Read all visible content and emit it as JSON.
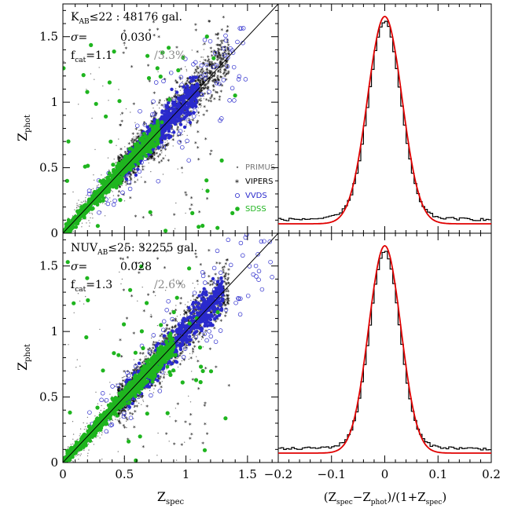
{
  "colors": {
    "primus": "#7a7a7a",
    "vipers": "#000000",
    "vvds": "#2a2acc",
    "sdss": "#1fb51f",
    "fit": "#e00000",
    "histogram": "#000000",
    "fcat_pct": "#8a8a8a"
  },
  "chart_data": [
    {
      "type": "scatter",
      "panel": "top-left",
      "xlim": [
        0,
        1.75
      ],
      "ylim": [
        0,
        1.75
      ],
      "xticks": [
        "0",
        "0.5",
        "1",
        "1.5"
      ],
      "yticks": [
        "0",
        "0.5",
        "1",
        "1.5"
      ],
      "xlabel": {
        "main": "Z",
        "sub": "spec"
      },
      "ylabel": {
        "main": "Z",
        "sub": "phot"
      },
      "annotation": {
        "selection_main": "K",
        "selection_sub": "AB",
        "selection_rest": "≤22 : 48176 gal.",
        "sigma_label": "σ=",
        "sigma_value": "0.030",
        "fcat_main": "f",
        "fcat_sub": "cat",
        "fcat_value": "=1.1",
        "fcat_pct": "/3.3%"
      },
      "legend": {
        "position": "bottom-right",
        "entries": [
          {
            "name": "PRIMUS",
            "marker": "dot",
            "color": "#7a7a7a"
          },
          {
            "name": "VIPERS",
            "marker": "star",
            "color": "#000000"
          },
          {
            "name": "VVDS",
            "marker": "open-circle",
            "color": "#2a2acc"
          },
          {
            "name": "SDSS",
            "marker": "filled-circle",
            "color": "#1fb51f"
          }
        ]
      },
      "reference_line": "y = x",
      "series": [
        {
          "name": "PRIMUS",
          "description_points": "dense cloud along y=x, z 0-1.2"
        },
        {
          "name": "VIPERS",
          "z_range": [
            0.4,
            1.4
          ],
          "scatter": 0.05
        },
        {
          "name": "VVDS",
          "z_range": [
            0.5,
            1.1
          ],
          "scatter": 0.03
        },
        {
          "name": "SDSS",
          "z_range": [
            0.0,
            0.8
          ],
          "scatter": 0.02
        }
      ]
    },
    {
      "type": "histogram",
      "panel": "top-right",
      "xlim": [
        -0.2,
        0.2
      ],
      "xlabel": "",
      "peak_center": 0.0,
      "sigma": 0.03,
      "fit": "gaussian"
    },
    {
      "type": "scatter",
      "panel": "bottom-left",
      "xlim": [
        0,
        1.75
      ],
      "ylim": [
        0,
        1.75
      ],
      "xticks": [
        "0",
        "0.5",
        "1",
        "1.5"
      ],
      "yticks": [
        "0",
        "0.5",
        "1",
        "1.5"
      ],
      "xlabel": {
        "main": "Z",
        "sub": "spec"
      },
      "ylabel": {
        "main": "Z",
        "sub": "phot"
      },
      "annotation": {
        "selection_main": "NUV",
        "selection_sub": "AB",
        "selection_rest": "≤25: 32255 gal.",
        "sigma_label": "σ=",
        "sigma_value": "0.028",
        "fcat_main": "f",
        "fcat_sub": "cat",
        "fcat_value": "=1.3",
        "fcat_pct": "/2.6%"
      },
      "reference_line": "y = x",
      "series": [
        {
          "name": "PRIMUS",
          "description_points": "dense cloud along y=x, z 0-1.2"
        },
        {
          "name": "VIPERS",
          "z_range": [
            0.4,
            1.4
          ],
          "scatter": 0.05
        },
        {
          "name": "VVDS",
          "z_range": [
            0.5,
            1.3
          ],
          "scatter": 0.04
        },
        {
          "name": "SDSS",
          "z_range": [
            0.0,
            0.9
          ],
          "scatter": 0.02
        }
      ]
    },
    {
      "type": "histogram",
      "panel": "bottom-right",
      "xlim": [
        -0.2,
        0.2
      ],
      "xticks": [
        "−0.2",
        "−0.1",
        "0",
        "0.1",
        "0.2"
      ],
      "xlabel": "(Z_spec−Z_phot)/(1+Z_spec)",
      "xlabel_parts": {
        "open": "(Z",
        "sub1": "spec",
        "minus": "−Z",
        "sub2": "phot",
        "mid": ")/(1+Z",
        "sub3": "spec",
        "close": ")"
      },
      "peak_center": 0.0,
      "sigma": 0.028,
      "fit": "gaussian"
    }
  ]
}
